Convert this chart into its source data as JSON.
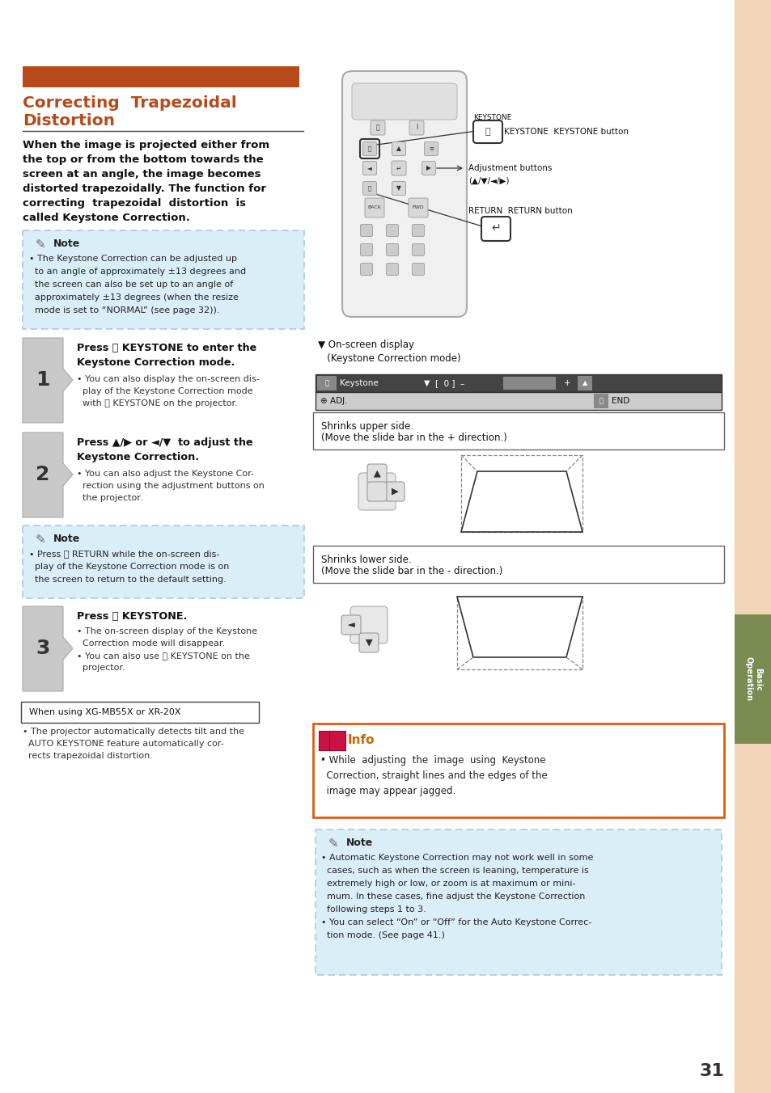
{
  "page_bg": "#ffffff",
  "sidebar_bg": "#f2d5b8",
  "sidebar_tab_bg": "#7a8c52",
  "title_bar_color": "#b84a1a",
  "title_color": "#b84a1a",
  "note_bg": "#daeef8",
  "note_border": "#aaccdd",
  "info_border": "#e05c10",
  "info_title_color": "#cc6600",
  "page_number": "31",
  "tab_text_line1": "Basic",
  "tab_text_line2": "Operation",
  "body_color": "#111111",
  "small_color": "#333333",
  "link_color": "#1155cc"
}
